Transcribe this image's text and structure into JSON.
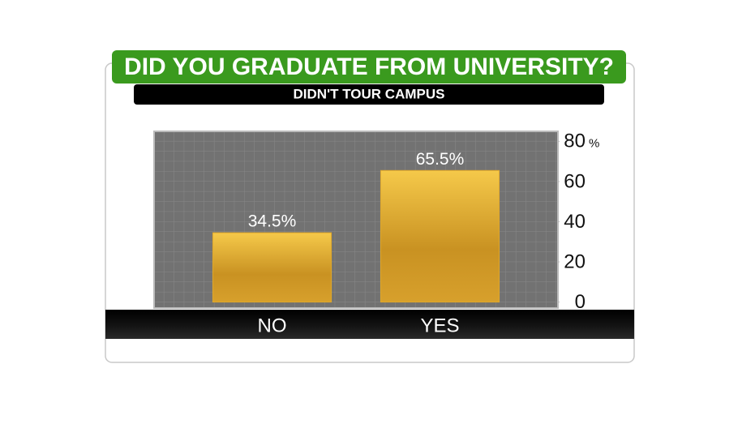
{
  "chart_data": {
    "type": "bar",
    "title": "DID YOU GRADUATE FROM UNIVERSITY?",
    "subtitle": "DIDN'T TOUR CAMPUS",
    "categories": [
      "NO",
      "YES"
    ],
    "values": [
      34.5,
      65.5
    ],
    "value_labels": [
      "34.5%",
      "65.5%"
    ],
    "color": "#e0a82a",
    "ylim": [
      -3,
      85
    ],
    "yticks": [
      0,
      20,
      40,
      60,
      80
    ],
    "y_unit": "%",
    "y_axis_side": "right"
  }
}
